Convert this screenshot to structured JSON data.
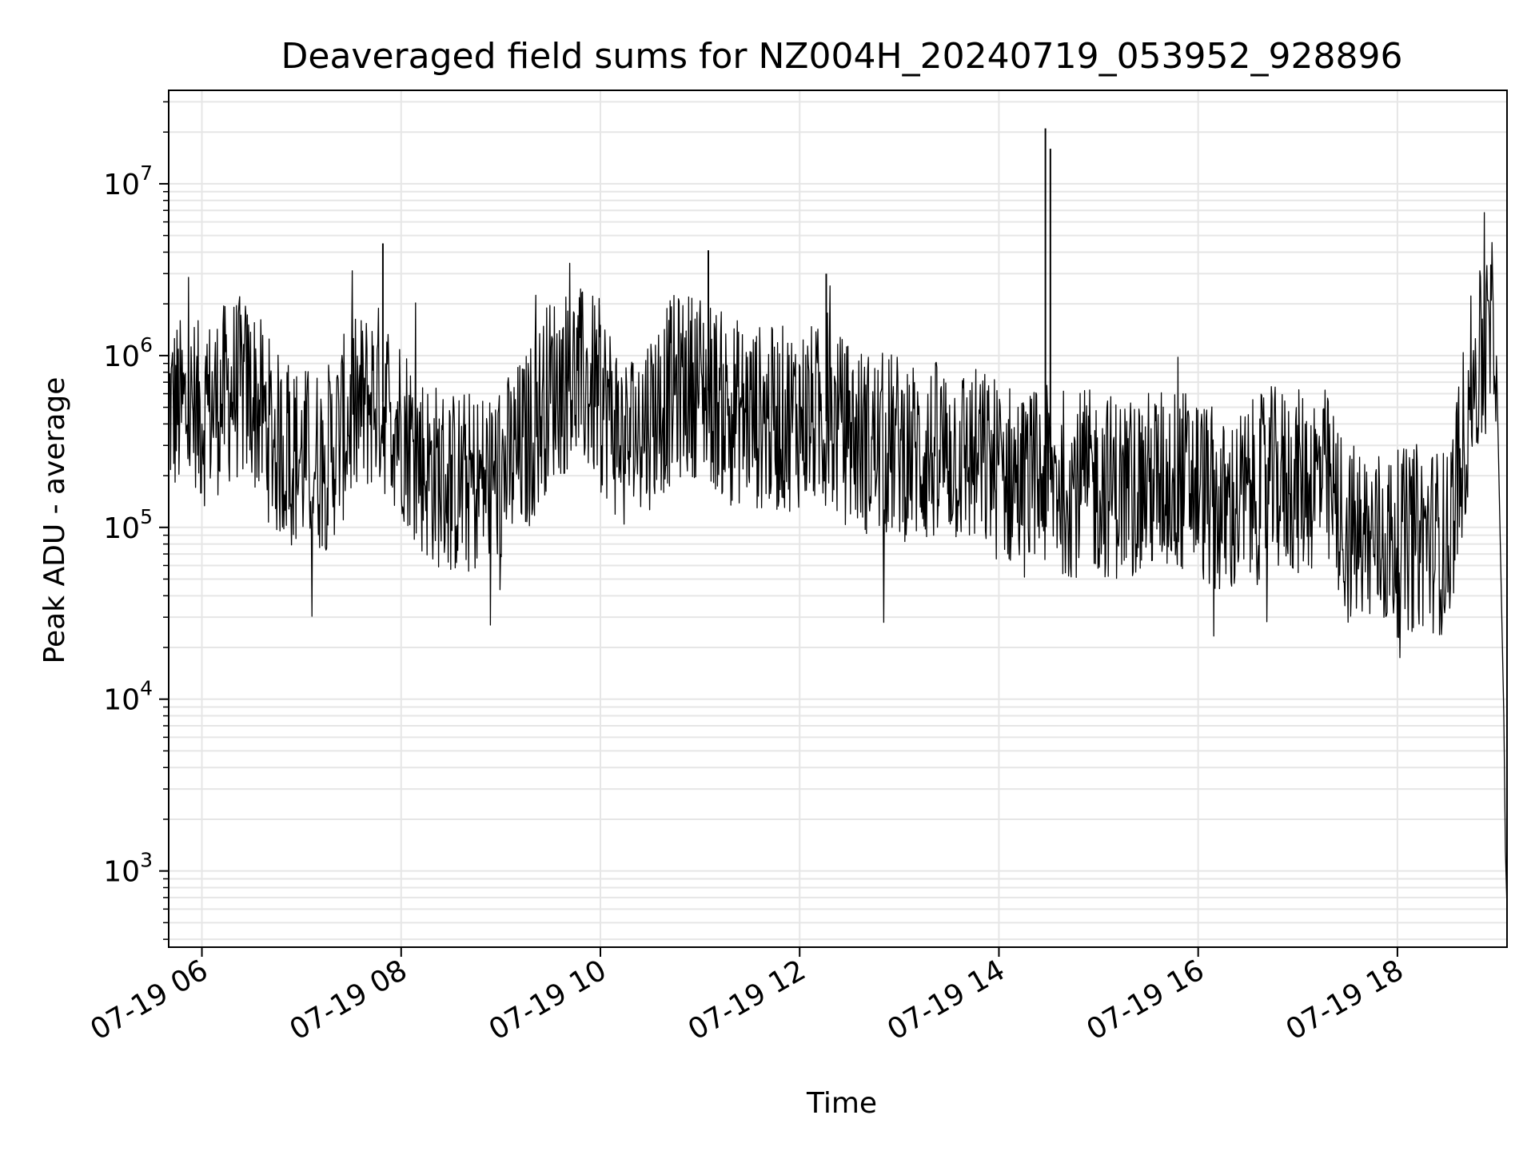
{
  "chart_data": {
    "type": "line",
    "title": "Deaveraged field sums for NZ004H_20240719_053952_928896",
    "xlabel": "Time",
    "ylabel": "Peak ADU - average",
    "y_scale": "log",
    "grid": true,
    "grid_minor": true,
    "line_color": "#000000",
    "grid_color": "#e6e6e6",
    "xlim": [
      "2024-07-19 05:40",
      "2024-07-19 19:06"
    ],
    "ylim": [
      360,
      35000000
    ],
    "x_ticks": [
      {
        "time": "2024-07-19 06:00",
        "label": "07-19 06"
      },
      {
        "time": "2024-07-19 08:00",
        "label": "07-19 08"
      },
      {
        "time": "2024-07-19 10:00",
        "label": "07-19 10"
      },
      {
        "time": "2024-07-19 12:00",
        "label": "07-19 12"
      },
      {
        "time": "2024-07-19 14:00",
        "label": "07-19 14"
      },
      {
        "time": "2024-07-19 16:00",
        "label": "07-19 16"
      },
      {
        "time": "2024-07-19 18:00",
        "label": "07-19 18"
      }
    ],
    "y_ticks": [
      {
        "value": 1000,
        "base": "10",
        "exp": "3"
      },
      {
        "value": 10000,
        "base": "10",
        "exp": "4"
      },
      {
        "value": 100000,
        "base": "10",
        "exp": "5"
      },
      {
        "value": 1000000,
        "base": "10",
        "exp": "6"
      },
      {
        "value": 10000000,
        "base": "10",
        "exp": "7"
      }
    ],
    "series": [
      {
        "x": [
          "2024-07-19 05:40",
          "2024-07-19 06:00",
          "2024-07-19 06:20",
          "2024-07-19 06:30",
          "2024-07-19 06:45",
          "2024-07-19 07:00",
          "2024-07-19 07:15",
          "2024-07-19 07:30",
          "2024-07-19 07:45",
          "2024-07-19 08:00",
          "2024-07-19 08:15",
          "2024-07-19 08:30",
          "2024-07-19 08:45",
          "2024-07-19 09:00",
          "2024-07-19 09:15",
          "2024-07-19 09:30",
          "2024-07-19 09:45",
          "2024-07-19 10:00",
          "2024-07-19 10:15",
          "2024-07-19 10:30",
          "2024-07-19 10:45",
          "2024-07-19 11:00",
          "2024-07-19 11:15",
          "2024-07-19 11:30",
          "2024-07-19 11:45",
          "2024-07-19 12:00",
          "2024-07-19 12:15",
          "2024-07-19 12:30",
          "2024-07-19 12:45",
          "2024-07-19 13:00",
          "2024-07-19 13:15",
          "2024-07-19 13:30",
          "2024-07-19 13:45",
          "2024-07-19 14:00",
          "2024-07-19 14:15",
          "2024-07-19 14:30",
          "2024-07-19 14:45",
          "2024-07-19 15:00",
          "2024-07-19 15:15",
          "2024-07-19 15:30",
          "2024-07-19 15:45",
          "2024-07-19 16:00",
          "2024-07-19 16:15",
          "2024-07-19 16:30",
          "2024-07-19 16:45",
          "2024-07-19 17:00",
          "2024-07-19 17:15",
          "2024-07-19 17:30",
          "2024-07-19 17:45",
          "2024-07-19 18:00",
          "2024-07-19 18:15",
          "2024-07-19 18:30",
          "2024-07-19 18:45",
          "2024-07-19 19:00",
          "2024-07-19 19:06"
        ],
        "y": [
          500000,
          450000,
          650000,
          600000,
          300000,
          250000,
          250000,
          450000,
          600000,
          400000,
          220000,
          180000,
          180000,
          200000,
          300000,
          650000,
          750000,
          600000,
          300000,
          450000,
          650000,
          700000,
          500000,
          450000,
          420000,
          450000,
          420000,
          350000,
          300000,
          300000,
          260000,
          280000,
          250000,
          220000,
          180000,
          190000,
          180000,
          180000,
          170000,
          180000,
          190000,
          180000,
          120000,
          150000,
          190000,
          180000,
          200000,
          90000,
          85000,
          80000,
          90000,
          80000,
          700000,
          1500000,
          600
        ]
      }
    ],
    "spikes": [
      {
        "x": "2024-07-19 14:28",
        "y": 21000000
      },
      {
        "x": "2024-07-19 14:31",
        "y": 16000000
      },
      {
        "x": "2024-07-19 07:49",
        "y": 4500000
      },
      {
        "x": "2024-07-19 11:05",
        "y": 4100000
      },
      {
        "x": "2024-07-19 12:16",
        "y": 3000000
      }
    ]
  }
}
